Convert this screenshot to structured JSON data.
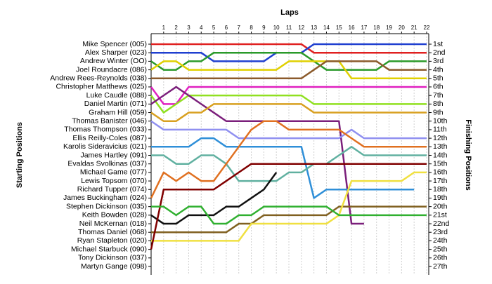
{
  "chart_data": {
    "type": "line",
    "title": "Laps",
    "y_label": "Starting Positions",
    "y2_label": "Finishing Positions",
    "xlim": [
      0,
      22
    ],
    "xticks": [
      1,
      2,
      3,
      4,
      5,
      6,
      7,
      8,
      9,
      10,
      11,
      12,
      13,
      14,
      15,
      16,
      17,
      18,
      19,
      20,
      21,
      22
    ],
    "x": [
      0,
      1,
      2,
      3,
      4,
      5,
      6,
      7,
      8,
      9,
      10,
      11,
      12,
      13,
      14,
      15,
      16,
      17,
      18,
      19,
      20,
      21,
      22
    ],
    "ylim": [
      1,
      27
    ],
    "starting_positions": [
      "Mike Spencer (005)",
      "Alex Sharper (023)",
      "Andrew Winter (OO)",
      "Joel Roundacre (086)",
      "Andrew Rees-Reynolds (038)",
      "Christopher Matthews (025)",
      "Luke Caudle (088)",
      "Daniel Martin (071)",
      "Graham Hill (059)",
      "Thomas Banister (046)",
      "Thomas Thompson (033)",
      "Ellis Reilly-Coles (087)",
      "Karolis Sideravicius (021)",
      "James Hartley (091)",
      "Evaldas Svolkinas (037)",
      "Michael Game (077)",
      "Lewis Topsom (070)",
      "Richard Tupper (074)",
      "James Buckingham (024)",
      "Stephen Dickinson (035)",
      "Keith Bowden (028)",
      "Neil McKernan (018)",
      "Thomas Daniel (068)",
      "Ryan Stapleton (020)",
      "Michael Starbuck (090)",
      "Tony Dickinson (037)",
      "Martyn Gange (098)"
    ],
    "finishing_positions": [
      "1st",
      "2nd",
      "3rd",
      "4th",
      "5th",
      "6th",
      "7th",
      "8th",
      "9th",
      "10th",
      "11th",
      "12th",
      "13th",
      "14th",
      "15th",
      "16th",
      "17th",
      "18th",
      "19th",
      "20th",
      "21st",
      "22nd",
      "23rd",
      "24th",
      "25th",
      "26th",
      "27th"
    ],
    "series": [
      {
        "color": "#e02020",
        "values": [
          1,
          1,
          1,
          1,
          1,
          1,
          1,
          1,
          1,
          1,
          1,
          1,
          1,
          2,
          2,
          2,
          2,
          2,
          2,
          2,
          2,
          2,
          2
        ]
      },
      {
        "color": "#1f3fd0",
        "values": [
          2,
          2,
          2,
          2,
          2,
          3,
          3,
          3,
          3,
          3,
          2,
          2,
          2,
          1,
          1,
          1,
          1,
          1,
          1,
          1,
          1,
          1,
          1
        ]
      },
      {
        "color": "#2a9a2a",
        "values": [
          3,
          4,
          4,
          3,
          3,
          2,
          2,
          2,
          2,
          2,
          2,
          2,
          2,
          3,
          4,
          4,
          4,
          4,
          4,
          3,
          3,
          3,
          3
        ]
      },
      {
        "color": "#e0d000",
        "values": [
          4,
          3,
          3,
          4,
          4,
          4,
          4,
          4,
          4,
          4,
          4,
          3,
          3,
          3,
          3,
          3,
          5,
          5,
          5,
          5,
          5,
          5,
          5
        ]
      },
      {
        "color": "#8b5a2b",
        "values": [
          5,
          5,
          5,
          5,
          5,
          5,
          5,
          5,
          5,
          5,
          5,
          5,
          5,
          4,
          3,
          3,
          3,
          3,
          3,
          4,
          4,
          4,
          4
        ]
      },
      {
        "color": "#e020c0",
        "values": [
          6,
          8,
          8,
          6,
          6,
          6,
          6,
          6,
          6,
          6,
          6,
          6,
          6,
          6,
          6,
          6,
          6,
          6,
          6,
          6,
          6,
          6,
          6
        ]
      },
      {
        "color": "#90e020",
        "values": [
          7,
          9,
          8,
          7,
          7,
          7,
          7,
          7,
          7,
          7,
          7,
          7,
          7,
          8,
          8,
          8,
          8,
          8,
          8,
          8,
          8,
          8,
          8
        ]
      },
      {
        "color": "#7b1f7b",
        "values": [
          8,
          7,
          6,
          7,
          8,
          9,
          10,
          10,
          10,
          10,
          10,
          10,
          10,
          10,
          10,
          10,
          22,
          22,
          null,
          null,
          null,
          null,
          null
        ]
      },
      {
        "color": "#d8a020",
        "values": [
          9,
          10,
          10,
          9,
          9,
          8,
          8,
          8,
          8,
          8,
          8,
          8,
          8,
          9,
          9,
          9,
          9,
          9,
          9,
          9,
          9,
          9,
          9
        ]
      },
      {
        "color": "#9090f0",
        "values": [
          10,
          11,
          11,
          11,
          11,
          11,
          11,
          12,
          12,
          12,
          12,
          12,
          12,
          12,
          12,
          12,
          11,
          12,
          12,
          12,
          12,
          12,
          12
        ]
      },
      {
        "color": "#2f8fd8",
        "values": [
          13,
          13,
          13,
          13,
          12,
          12,
          13,
          13,
          13,
          13,
          13,
          13,
          13,
          19,
          18,
          18,
          18,
          18,
          18,
          18,
          18,
          18,
          null
        ]
      },
      {
        "color": "#60b0a0",
        "values": [
          14,
          14,
          15,
          15,
          14,
          14,
          15,
          17,
          17,
          17,
          17,
          16,
          16,
          15,
          15,
          14,
          13,
          14,
          14,
          14,
          14,
          14,
          14
        ]
      },
      {
        "color": "#e07020",
        "values": [
          19,
          16,
          17,
          16,
          17,
          17,
          15,
          13,
          11,
          10,
          10,
          11,
          11,
          11,
          11,
          11,
          12,
          13,
          13,
          13,
          13,
          13,
          13
        ]
      },
      {
        "color": "#101010",
        "values": [
          21,
          22,
          22,
          21,
          21,
          21,
          20,
          20,
          19,
          18,
          16,
          null,
          null,
          null,
          null,
          null,
          null,
          null,
          null,
          null,
          null,
          null,
          null
        ]
      },
      {
        "color": "#806020",
        "values": [
          23,
          23,
          23,
          23,
          23,
          23,
          23,
          22,
          22,
          21,
          21,
          21,
          21,
          21,
          21,
          20,
          20,
          20,
          20,
          20,
          20,
          20,
          20
        ]
      },
      {
        "color": "#f0e040",
        "values": [
          24,
          24,
          24,
          24,
          24,
          24,
          24,
          24,
          22,
          22,
          22,
          22,
          22,
          22,
          22,
          21,
          17,
          17,
          17,
          17,
          17,
          16,
          16
        ]
      },
      {
        "color": "#800000",
        "values": [
          25,
          18,
          18,
          18,
          18,
          18,
          17,
          16,
          15,
          15,
          15,
          15,
          15,
          15,
          15,
          15,
          15,
          15,
          15,
          15,
          15,
          15,
          15
        ]
      },
      {
        "color": "#30b030",
        "values": [
          20,
          20,
          21,
          20,
          20,
          22,
          22,
          21,
          21,
          20,
          20,
          20,
          20,
          20,
          20,
          21,
          21,
          21,
          21,
          21,
          21,
          21,
          21
        ]
      }
    ]
  }
}
